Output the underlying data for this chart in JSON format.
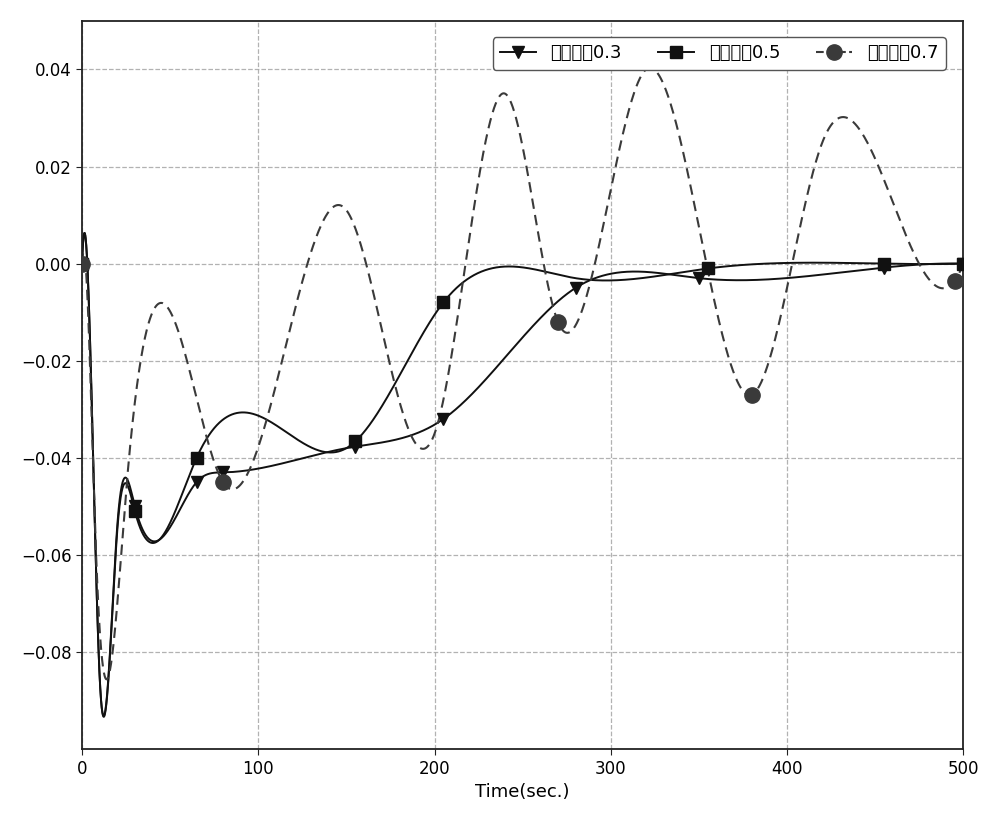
{
  "xlabel": "Time(sec.)",
  "xlim": [
    0,
    500
  ],
  "ylim": [
    -0.1,
    0.05
  ],
  "yticks": [
    -0.08,
    -0.06,
    -0.04,
    -0.02,
    0.0,
    0.02,
    0.04
  ],
  "xticks": [
    0,
    100,
    200,
    300,
    400,
    500
  ],
  "legend_labels": [
    "滤波因倅0.3",
    "滤波因倅0.5",
    "滤波因倅0.7"
  ],
  "line_color": "#111111",
  "dashed_color": "#333333",
  "grid_color": "#aaaaaa",
  "bg_color": "#ffffff",
  "t_markers_03": [
    0,
    30,
    65,
    80,
    155,
    205,
    280,
    350,
    455,
    500
  ],
  "t_markers_05": [
    0,
    30,
    65,
    155,
    205,
    355,
    455,
    500
  ],
  "t_markers_07": [
    0,
    80,
    270,
    380,
    495
  ]
}
